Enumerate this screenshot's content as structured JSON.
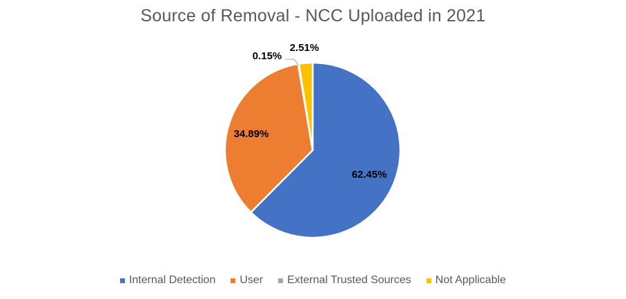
{
  "chart_data": {
    "type": "pie",
    "title": "Source of Removal - NCC Uploaded in 2021",
    "series": [
      {
        "name": "Internal Detection",
        "value": 62.45,
        "label": "62.45%",
        "color": "#4472C4"
      },
      {
        "name": "User",
        "value": 34.89,
        "label": "34.89%",
        "color": "#ED7D31"
      },
      {
        "name": "External Trusted Sources",
        "value": 0.15,
        "label": "0.15%",
        "color": "#A5A5A5"
      },
      {
        "name": "Not Applicable",
        "value": 2.51,
        "label": "2.51%",
        "color": "#FFC000"
      }
    ],
    "legend_position": "bottom"
  }
}
